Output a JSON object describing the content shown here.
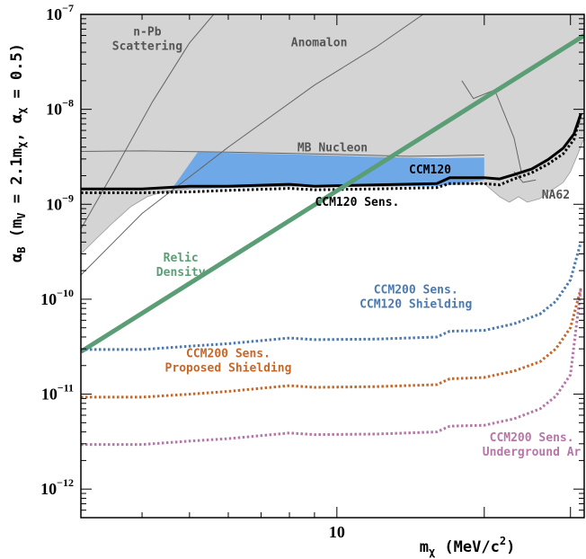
{
  "chart_data": {
    "type": "line",
    "title": "",
    "xlabel": {
      "m": "m",
      "sub": "χ",
      "rest": " (MeV/c",
      "sup": "2",
      "close": ")"
    },
    "ylabel": {
      "a": "α",
      "sub_b": "B",
      "p1": " (m",
      "sub_v": "V",
      "p2": " = 2.1m",
      "sub_chi": "χ",
      "p3": ", α",
      "sub_chi2": "χ",
      "p4": " = 0.5)"
    },
    "xscale": "log",
    "yscale": "log",
    "xlim": [
      3,
      32
    ],
    "ylim": [
      5e-13,
      1e-07
    ],
    "x_ticks": [
      {
        "value": 10,
        "label": "10"
      }
    ],
    "y_ticks": [
      {
        "value": 1e-12,
        "base": "10",
        "exp": "−12"
      },
      {
        "value": 1e-11,
        "base": "10",
        "exp": "−11"
      },
      {
        "value": 1e-10,
        "base": "10",
        "exp": "−10"
      },
      {
        "value": 1e-09,
        "base": "10",
        "exp": "−9"
      },
      {
        "value": 1e-08,
        "base": "10",
        "exp": "−8"
      },
      {
        "value": 1e-07,
        "base": "10",
        "exp": "−7"
      }
    ],
    "excluded_region": {
      "color": "#d4d4d4",
      "boundary": [
        [
          3,
          3e-10
        ],
        [
          3.25,
          4.5e-10
        ],
        [
          3.5,
          6.5e-10
        ],
        [
          3.8,
          9.5e-10
        ],
        [
          4.1,
          1.2e-09
        ],
        [
          4.4,
          1.35e-09
        ],
        [
          5,
          1.45e-09
        ],
        [
          6,
          1.5e-09
        ],
        [
          8,
          1.55e-09
        ],
        [
          10,
          1.55e-09
        ],
        [
          13,
          1.55e-09
        ],
        [
          16,
          1.6e-09
        ],
        [
          20,
          1.65e-09
        ],
        [
          21.5,
          1.2e-09
        ],
        [
          22.5,
          1.05e-09
        ],
        [
          23.5,
          1.2e-09
        ],
        [
          24.5,
          1.05e-09
        ],
        [
          26,
          1.15e-09
        ],
        [
          27,
          1.35e-09
        ],
        [
          28,
          1.5e-09
        ],
        [
          29,
          1.7e-09
        ],
        [
          30,
          2.2e-09
        ],
        [
          31,
          3.3e-09
        ],
        [
          32,
          5e-09
        ]
      ]
    },
    "ccm120_region": {
      "color": "#6fa8e6",
      "top": [
        [
          5.2,
          3.55e-09
        ],
        [
          8,
          3.35e-09
        ],
        [
          12,
          3.15e-09
        ],
        [
          16,
          3.05e-09
        ],
        [
          20,
          3.1e-09
        ]
      ],
      "bottom": [
        [
          20,
          1.8e-09
        ],
        [
          16,
          1.55e-09
        ],
        [
          12,
          1.55e-09
        ],
        [
          8,
          1.55e-09
        ],
        [
          6,
          1.5e-09
        ],
        [
          4.6,
          1.45e-09
        ]
      ]
    },
    "reference_lines": [
      {
        "name": "n-Pb Scattering",
        "points": [
          [
            3,
            5.5e-10
          ],
          [
            3.5,
            2.2e-09
          ],
          [
            4.2,
            1.2e-08
          ],
          [
            5,
            5e-08
          ],
          [
            5.6,
            1e-07
          ]
        ]
      },
      {
        "name": "Anomalon",
        "points": [
          [
            3,
            1.8e-10
          ],
          [
            4,
            8e-10
          ],
          [
            6,
            4e-09
          ],
          [
            9,
            1.8e-08
          ],
          [
            12,
            4.5e-08
          ],
          [
            15,
            1e-07
          ]
        ]
      },
      {
        "name": "MB Nucleon",
        "points": [
          [
            3,
            3.6e-09
          ],
          [
            4,
            3.65e-09
          ],
          [
            6,
            3.55e-09
          ],
          [
            10,
            3.35e-09
          ],
          [
            14,
            3.2e-09
          ],
          [
            17,
            3.25e-09
          ],
          [
            20,
            3.3e-09
          ]
        ]
      },
      {
        "name": "",
        "points": [
          [
            18,
            2e-08
          ],
          [
            19,
            1.3e-08
          ],
          [
            21,
            1.6e-08
          ],
          [
            23,
            5e-09
          ],
          [
            23.8,
            2.2e-09
          ]
        ]
      },
      {
        "name": "",
        "points": [
          [
            23,
            2.2e-09
          ],
          [
            24,
            1.7e-09
          ],
          [
            25.5,
            1.8e-09
          ]
        ]
      }
    ],
    "series": [
      {
        "name": "CCM120",
        "color": "#000000",
        "dash": "solid",
        "width": 3,
        "points": [
          [
            3,
            1.45e-09
          ],
          [
            4,
            1.45e-09
          ],
          [
            5,
            1.55e-09
          ],
          [
            6,
            1.55e-09
          ],
          [
            8,
            1.62e-09
          ],
          [
            9,
            1.55e-09
          ],
          [
            12,
            1.6e-09
          ],
          [
            16,
            1.65e-09
          ],
          [
            17,
            1.9e-09
          ],
          [
            20,
            1.9e-09
          ],
          [
            21.5,
            1.85e-09
          ],
          [
            23,
            2.05e-09
          ],
          [
            25,
            2.35e-09
          ],
          [
            27,
            2.95e-09
          ],
          [
            29,
            3.9e-09
          ],
          [
            30.5,
            5.5e-09
          ],
          [
            31.5,
            9e-09
          ]
        ]
      },
      {
        "name": "CCM120 Sens.",
        "color": "#000000",
        "dash": "dotted",
        "width": 3,
        "points": [
          [
            3,
            1.32e-09
          ],
          [
            4,
            1.32e-09
          ],
          [
            5,
            1.35e-09
          ],
          [
            6,
            1.4e-09
          ],
          [
            8,
            1.47e-09
          ],
          [
            9,
            1.42e-09
          ],
          [
            12,
            1.45e-09
          ],
          [
            16,
            1.5e-09
          ],
          [
            17,
            1.65e-09
          ],
          [
            20,
            1.65e-09
          ],
          [
            21.5,
            1.6e-09
          ],
          [
            23,
            1.85e-09
          ],
          [
            25,
            2.15e-09
          ],
          [
            27,
            2.65e-09
          ],
          [
            29,
            3.4e-09
          ],
          [
            30.5,
            4.8e-09
          ],
          [
            31.5,
            9e-09
          ]
        ]
      },
      {
        "name": "Relic Density",
        "color": "#5b9e76",
        "dash": "solid",
        "width": 5,
        "points": [
          [
            3,
            2.8e-11
          ],
          [
            32,
            6e-08
          ]
        ]
      },
      {
        "name": "CCM200 Sens. CCM120 Shielding",
        "color": "#4a7ab0",
        "dash": "dotted",
        "width": 3,
        "points": [
          [
            3,
            2.95e-11
          ],
          [
            4,
            2.95e-11
          ],
          [
            5,
            3.2e-11
          ],
          [
            6,
            3.4e-11
          ],
          [
            8,
            3.9e-11
          ],
          [
            9,
            3.75e-11
          ],
          [
            12,
            3.8e-11
          ],
          [
            16,
            4e-11
          ],
          [
            17,
            4.6e-11
          ],
          [
            20,
            4.7e-11
          ],
          [
            23,
            5.5e-11
          ],
          [
            26,
            7e-11
          ],
          [
            28,
            9.5e-11
          ],
          [
            30,
            1.6e-10
          ],
          [
            31.5,
            4e-10
          ]
        ]
      },
      {
        "name": "CCM200 Sens. Proposed Shielding",
        "color": "#c6672a",
        "dash": "dotted",
        "width": 3,
        "points": [
          [
            3,
            9.3e-12
          ],
          [
            4,
            9.3e-12
          ],
          [
            5,
            1e-11
          ],
          [
            6,
            1.07e-11
          ],
          [
            8,
            1.23e-11
          ],
          [
            9,
            1.18e-11
          ],
          [
            12,
            1.2e-11
          ],
          [
            16,
            1.26e-11
          ],
          [
            17,
            1.45e-11
          ],
          [
            20,
            1.5e-11
          ],
          [
            23,
            1.75e-11
          ],
          [
            26,
            2.2e-11
          ],
          [
            28,
            3e-11
          ],
          [
            30,
            5e-11
          ],
          [
            31.5,
            1.3e-10
          ]
        ]
      },
      {
        "name": "CCM200 Sens. Underground Ar",
        "color": "#b676a8",
        "dash": "dotted",
        "width": 3,
        "points": [
          [
            3,
            2.95e-12
          ],
          [
            4,
            2.95e-12
          ],
          [
            5,
            3.2e-12
          ],
          [
            6,
            3.4e-12
          ],
          [
            8,
            3.9e-12
          ],
          [
            9,
            3.75e-12
          ],
          [
            12,
            3.8e-12
          ],
          [
            16,
            4e-12
          ],
          [
            17,
            4.6e-12
          ],
          [
            20,
            4.7e-12
          ],
          [
            23,
            5.5e-12
          ],
          [
            26,
            7e-12
          ],
          [
            28,
            9.5e-12
          ],
          [
            30,
            1.6e-11
          ],
          [
            31.5,
            1.3e-10
          ]
        ]
      }
    ],
    "annotations": [
      {
        "id": "n-pb",
        "lines": [
          "n-Pb",
          "Scattering"
        ],
        "color": "#555555",
        "at": [
          4.1,
          6e-08
        ]
      },
      {
        "id": "anomalon",
        "lines": [
          "Anomalon"
        ],
        "color": "#555555",
        "at": [
          9.2,
          4.6e-08
        ]
      },
      {
        "id": "mb-nucleon",
        "lines": [
          "MB Nucleon"
        ],
        "color": "#555555",
        "at": [
          9.8,
          3.6e-09
        ]
      },
      {
        "id": "ccm120",
        "lines": [
          "CCM120"
        ],
        "color": "#000000",
        "at": [
          15.5,
          2.1e-09
        ]
      },
      {
        "id": "ccm120-sens",
        "lines": [
          "CCM120 Sens."
        ],
        "color": "#000000",
        "at": [
          11.0,
          9.6e-10
        ]
      },
      {
        "id": "na62",
        "lines": [
          "NA62"
        ],
        "color": "#555555",
        "at": [
          28.0,
          1.15e-09
        ]
      },
      {
        "id": "relic",
        "lines": [
          "Relic",
          "Density"
        ],
        "color": "#5b9e76",
        "at": [
          4.8,
          2.5e-10
        ]
      },
      {
        "id": "ccm200-ccm120",
        "lines": [
          "CCM200 Sens.",
          "CCM120 Shielding"
        ],
        "color": "#4a7ab0",
        "at": [
          14.5,
          1.15e-10
        ]
      },
      {
        "id": "ccm200-proposed",
        "lines": [
          "CCM200 Sens.",
          "Proposed Shielding"
        ],
        "color": "#c6672a",
        "at": [
          6.0,
          2.45e-11
        ]
      },
      {
        "id": "ccm200-ar",
        "lines": [
          "CCM200 Sens.",
          "Underground Ar"
        ],
        "color": "#b676a8",
        "at": [
          25.0,
          3.2e-12
        ]
      }
    ]
  }
}
